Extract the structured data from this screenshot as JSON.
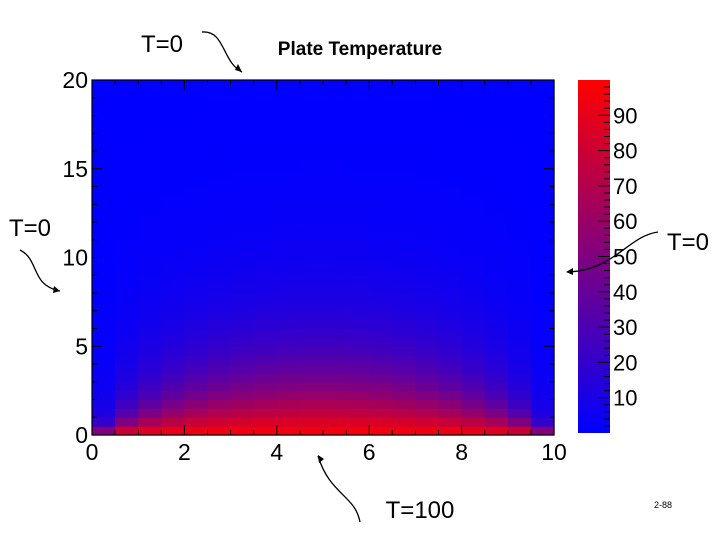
{
  "chart_data": {
    "type": "heatmap",
    "title": "Plate Temperature",
    "xlabel": "",
    "ylabel": "",
    "xlim": [
      0,
      10
    ],
    "ylim": [
      0,
      20
    ],
    "x_ticks": [
      "0",
      "2",
      "4",
      "6",
      "8",
      "10"
    ],
    "y_ticks": [
      "0",
      "5",
      "10",
      "15",
      "20"
    ],
    "grid": false,
    "colorbar": {
      "range": [
        0,
        100
      ],
      "ticks": [
        "10",
        "20",
        "30",
        "40",
        "50",
        "60",
        "70",
        "80",
        "90"
      ],
      "colors": {
        "low": "#0000ff",
        "high": "#ff0000"
      }
    },
    "boundary_conditions": {
      "top": "T=0",
      "left": "T=0",
      "right": "T=0",
      "bottom": "T=100"
    },
    "grid_size": [
      20,
      40
    ],
    "values_note": "steady-state temperature, T=100 at y=0, T=0 on other edges"
  },
  "footer": {
    "page_label": "2-88"
  }
}
